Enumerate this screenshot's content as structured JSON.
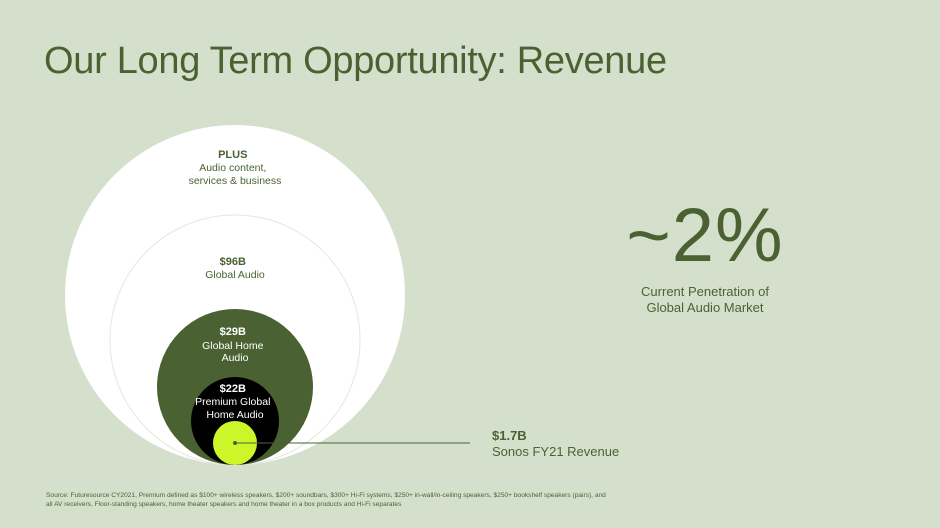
{
  "title": "Our Long Term Opportunity: Revenue",
  "rings": [
    {
      "id": "plus",
      "bold": "PLUS",
      "lines": [
        "Audio content,",
        "services & business"
      ]
    },
    {
      "id": "global-audio",
      "bold": "$96B",
      "lines": [
        "Global Audio"
      ]
    },
    {
      "id": "global-home-audio",
      "bold": "$29B",
      "lines": [
        "Global Home",
        "Audio"
      ]
    },
    {
      "id": "premium",
      "bold": "$22B",
      "lines": [
        "Premium Global",
        "Home Audio"
      ]
    },
    {
      "id": "sonos",
      "bold": "$1.7B",
      "lines": [
        "Sonos FY21 Revenue"
      ]
    }
  ],
  "stat": {
    "value": "~2%",
    "caption": "Current Penetration of\nGlobal Audio Market"
  },
  "source": "Source: Futuresource CY2021, Premium defined as $100+ wireless speakers, $200+ soundbars, $300+ Hi-Fi systems, $250+ in-wall/in-ceiling speakers, $250+ bookshelf speakers (pairs), and all AV receivers, Floor-standing speakers, home theater speakers and home theater in a box products and Hi-Fi separates",
  "colors": {
    "background": "#d5e0cc",
    "outer_circles": "#ffffff",
    "home_audio": "#4a6232",
    "premium": "#000000",
    "sonos": "#ccf52a",
    "text_green": "#4a6232"
  }
}
